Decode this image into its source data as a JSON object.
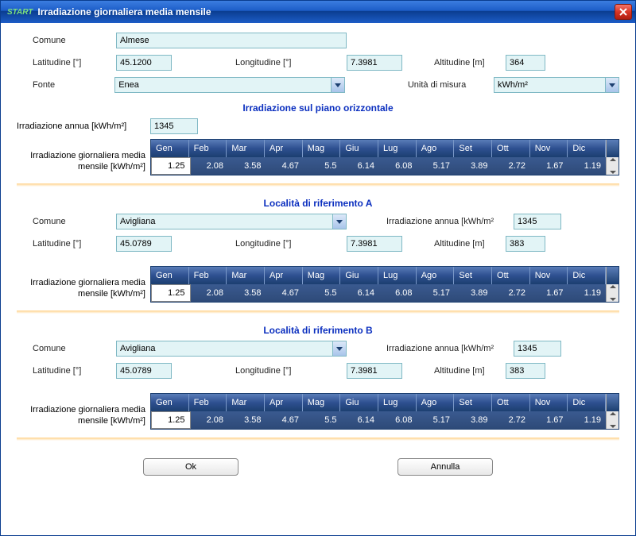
{
  "window": {
    "start_tag": "START",
    "title": "Irradiazione giornaliera media mensile"
  },
  "labels": {
    "comune": "Comune",
    "latitudine": "Latitudine [°]",
    "longitudine": "Longitudine [°]",
    "altitudine": "Altitudine [m]",
    "fonte": "Fonte",
    "unita": "Unità di misura",
    "irradiazione_annua": "Irradiazione annua [kWh/m²]",
    "irradiazione_annua_short": "Irradiazione annua [kWh/m²",
    "table_label": "Irradiazione giornaliera media mensile [kWh/m²]"
  },
  "sections": {
    "piano": "Irradiazione sul piano orizzontale",
    "locA": "Località di riferimento A",
    "locB": "Località di riferimento B"
  },
  "months": [
    "Gen",
    "Feb",
    "Mar",
    "Apr",
    "Mag",
    "Giu",
    "Lug",
    "Ago",
    "Set",
    "Ott",
    "Nov",
    "Dic"
  ],
  "top": {
    "comune": "Almese",
    "lat": "45.1200",
    "lon": "7.3981",
    "alt": "364",
    "fonte": "Enea",
    "unita": "kWh/m²",
    "annua": "1345",
    "values": [
      "1.25",
      "2.08",
      "3.58",
      "4.67",
      "5.5",
      "6.14",
      "6.08",
      "5.17",
      "3.89",
      "2.72",
      "1.67",
      "1.19"
    ]
  },
  "locA": {
    "comune": "Avigliana",
    "lat": "45.0789",
    "lon": "7.3981",
    "alt": "383",
    "annua": "1345",
    "values": [
      "1.25",
      "2.08",
      "3.58",
      "4.67",
      "5.5",
      "6.14",
      "6.08",
      "5.17",
      "3.89",
      "2.72",
      "1.67",
      "1.19"
    ]
  },
  "locB": {
    "comune": "Avigliana",
    "lat": "45.0789",
    "lon": "7.3981",
    "alt": "383",
    "annua": "1345",
    "values": [
      "1.25",
      "2.08",
      "3.58",
      "4.67",
      "5.5",
      "6.14",
      "6.08",
      "5.17",
      "3.89",
      "2.72",
      "1.67",
      "1.19"
    ]
  },
  "buttons": {
    "ok": "Ok",
    "annulla": "Annulla"
  },
  "colors": {
    "title_gradient_top": "#3b7de0",
    "title_gradient_bot": "#0a3d8f",
    "close_bg": "#d83526",
    "input_bg": "#e2f4f6",
    "input_border": "#7fb8c4",
    "section_title": "#0b2fbf",
    "grid_hdr_top": "#5a7db8",
    "grid_hdr_bot": "#1c3f70",
    "grid_dat_bg": "#2e4a78",
    "divider": "#ffd28a"
  }
}
